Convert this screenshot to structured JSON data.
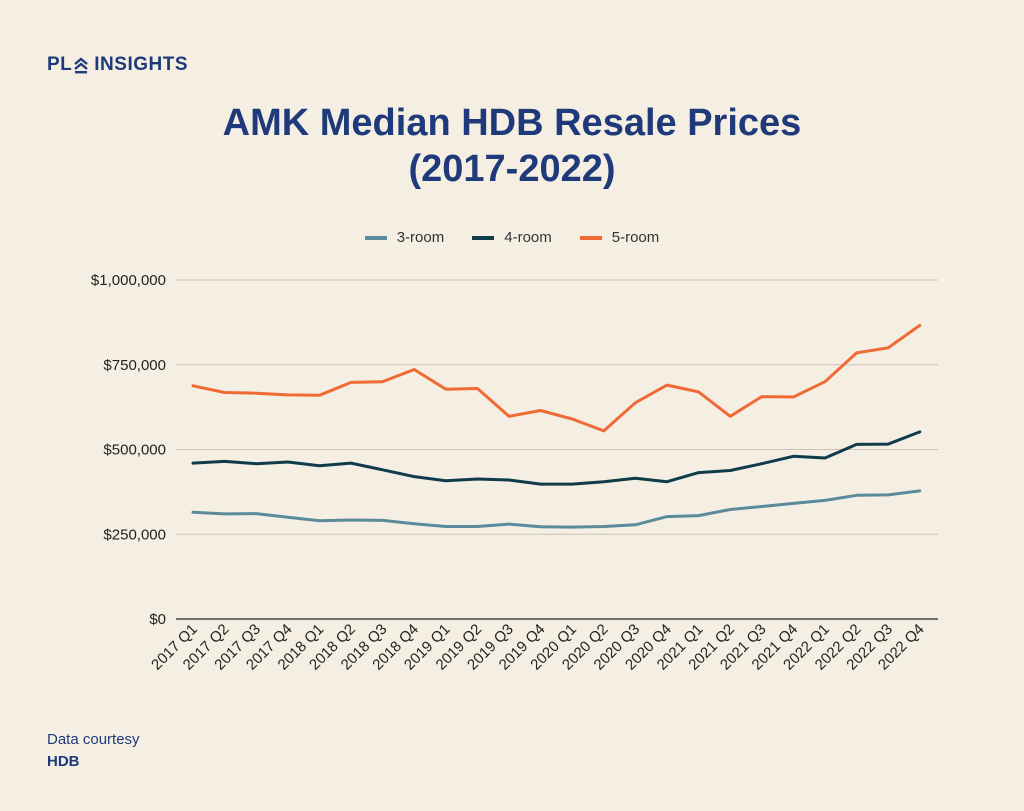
{
  "brand": {
    "prefix": "PL",
    "suffix": "INSIGHTS"
  },
  "title_line1": "AMK Median HDB Resale Prices",
  "title_line2": "(2017-2022)",
  "footer": {
    "label": "Data courtesy",
    "source": "HDB"
  },
  "colors": {
    "brand": "#1f3a7a",
    "grid": "#c9c3b8",
    "background": "#f5efe3"
  },
  "chart_data": {
    "type": "line",
    "title": "AMK Median HDB Resale Prices (2017-2022)",
    "xlabel": "",
    "ylabel": "",
    "ylim": [
      0,
      1000000
    ],
    "yticks": [
      0,
      250000,
      500000,
      750000,
      1000000
    ],
    "ytick_labels": [
      "$0",
      "$250,000",
      "$500,000",
      "$750,000",
      "$1,000,000"
    ],
    "grid": true,
    "legend": "top-center",
    "categories": [
      "2017 Q1",
      "2017 Q2",
      "2017 Q3",
      "2017 Q4",
      "2018 Q1",
      "2018 Q2",
      "2018 Q3",
      "2018 Q4",
      "2019 Q1",
      "2019 Q2",
      "2019 Q3",
      "2019 Q4",
      "2020 Q1",
      "2020 Q2",
      "2020 Q3",
      "2020 Q4",
      "2021 Q1",
      "2021 Q2",
      "2021 Q3",
      "2021 Q4",
      "2022 Q1",
      "2022 Q2",
      "2022 Q3",
      "2022 Q4"
    ],
    "series": [
      {
        "name": "3-room",
        "color": "#5b8a9a",
        "values": [
          315000,
          310000,
          311000,
          300000,
          290000,
          292000,
          291000,
          281000,
          273000,
          273000,
          280000,
          272000,
          271000,
          273000,
          278000,
          302000,
          305000,
          323000,
          332000,
          341000,
          350000,
          365000,
          366000,
          378000
        ]
      },
      {
        "name": "4-room",
        "color": "#0f3b4a",
        "values": [
          460000,
          465000,
          458000,
          463000,
          452000,
          460000,
          440000,
          420000,
          408000,
          413000,
          410000,
          398000,
          398000,
          405000,
          415000,
          405000,
          432000,
          438000,
          458000,
          480000,
          475000,
          515000,
          516000,
          552000
        ]
      },
      {
        "name": "5-room",
        "color": "#f06a35",
        "values": [
          688000,
          668000,
          666000,
          661000,
          660000,
          698000,
          700000,
          736000,
          678000,
          680000,
          598000,
          615000,
          590000,
          555000,
          638000,
          690000,
          670000,
          598000,
          656000,
          655000,
          700000,
          785000,
          800000,
          866000
        ]
      }
    ]
  }
}
